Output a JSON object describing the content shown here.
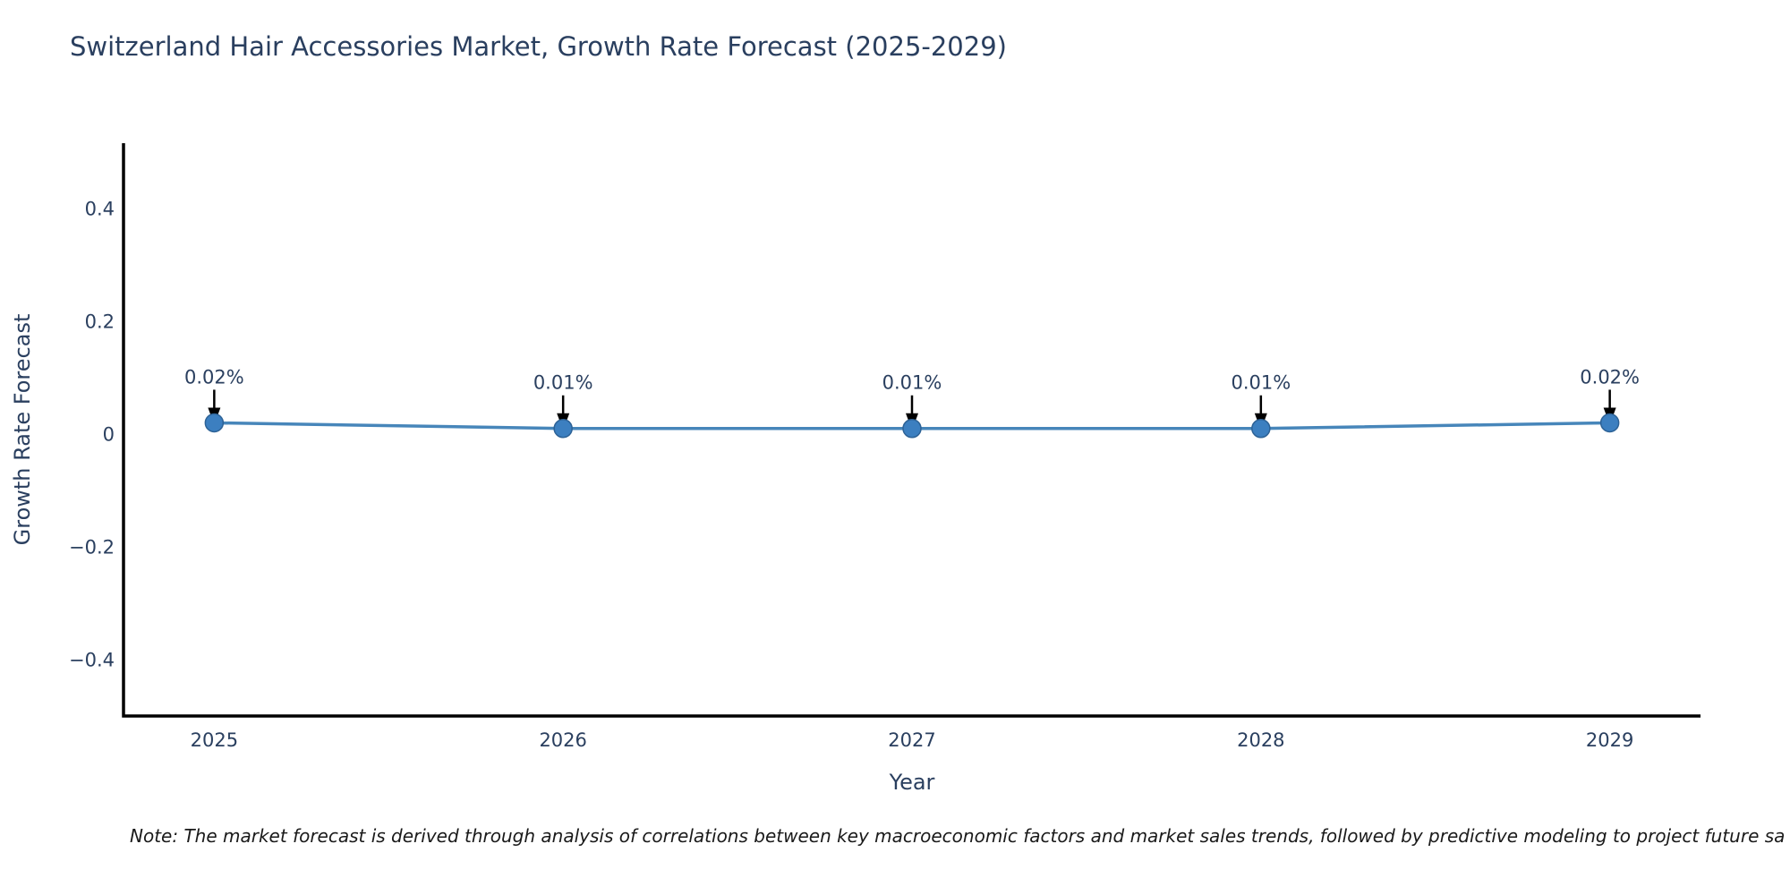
{
  "figure": {
    "title": "Switzerland Hair Accessories Market, Growth Rate Forecast (2025-2029)",
    "note": "Note: The market forecast is derived through analysis of correlations between key macroeconomic factors and market sales trends, followed by predictive modeling to project future sa"
  },
  "chart_data": {
    "type": "line",
    "title": "Switzerland Hair Accessories Market, Growth Rate Forecast (2025-2029)",
    "xlabel": "Year",
    "ylabel": "Growth Rate Forecast",
    "x": [
      2025,
      2026,
      2027,
      2028,
      2029
    ],
    "series": [
      {
        "name": "Growth Rate Forecast",
        "values": [
          0.02,
          0.01,
          0.01,
          0.01,
          0.02
        ],
        "labels": [
          "0.02%",
          "0.01%",
          "0.01%",
          "0.01%",
          "0.02%"
        ]
      }
    ],
    "xtick_labels": [
      "2025",
      "2026",
      "2027",
      "2028",
      "2029"
    ],
    "yticks": [
      -0.4,
      -0.2,
      0,
      0.2,
      0.4
    ],
    "ytick_labels": [
      "−0.4",
      "−0.2",
      "0",
      "0.2",
      "0.4"
    ],
    "xlim": [
      2024.74,
      2029.26
    ],
    "ylim": [
      -0.5,
      0.516
    ],
    "grid": false,
    "legend": false,
    "annotations_have_arrows": true,
    "colors": {
      "line": "#4786ba",
      "marker": "#3c7fc0",
      "marker_edge": "#2d6296",
      "axis": "#000000",
      "tick_text": "#2a3f5f",
      "title_text": "#2a3f5f",
      "annotation_text": "#2a3f5f",
      "annotation_arrow": "#000000",
      "note_text": "#1a1a1a",
      "background": "#ffffff"
    }
  }
}
